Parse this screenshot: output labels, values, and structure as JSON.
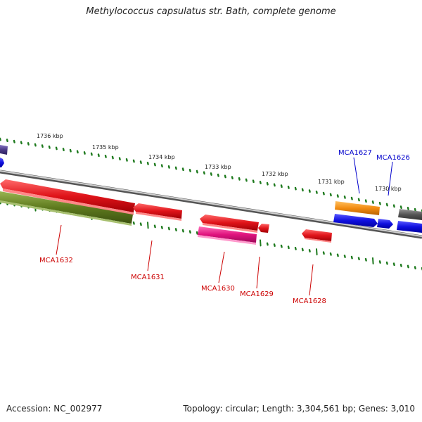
{
  "title": "Methylococcus capsulatus str. Bath, complete genome",
  "footer": {
    "accession": "Accession: NC_002977",
    "summary": "Topology: circular; Length: 3,304,561 bp; Genes: 3,010"
  },
  "kbp_labels": [
    "1736 kbp",
    "1735 kbp",
    "1734 kbp",
    "1733 kbp",
    "1732 kbp",
    "1731 kbp",
    "1730 kbp"
  ],
  "gene_labels": {
    "reverse": [
      "MCA1632",
      "MCA1631",
      "MCA1630",
      "MCA1629",
      "MCA1628"
    ],
    "forward": [
      "MCA1627",
      "MCA1626"
    ]
  },
  "colors": {
    "red": "#e0141a",
    "olive": "#5e7a1e",
    "magenta": "#e0137e",
    "orange": "#f28c12",
    "blue": "#1010e0",
    "gray": "#555555",
    "purple": "#4b3a86",
    "tick_green": "#1e7a1e",
    "backbone": "#8a8a8a",
    "label_red": "#cc0000",
    "label_blue": "#0000cc"
  }
}
